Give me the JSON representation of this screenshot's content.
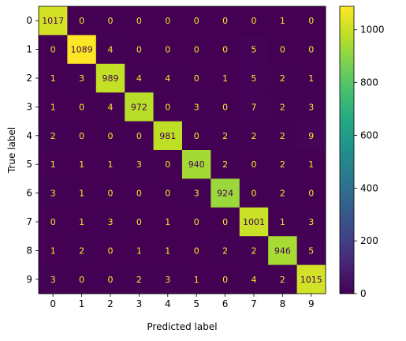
{
  "chart_data": {
    "type": "heatmap",
    "title": "",
    "xlabel": "Predicted label",
    "ylabel": "True label",
    "x_categories": [
      "0",
      "1",
      "2",
      "3",
      "4",
      "5",
      "6",
      "7",
      "8",
      "9"
    ],
    "y_categories": [
      "0",
      "1",
      "2",
      "3",
      "4",
      "5",
      "6",
      "7",
      "8",
      "9"
    ],
    "values": [
      [
        1017,
        0,
        0,
        0,
        0,
        0,
        0,
        0,
        1,
        0
      ],
      [
        0,
        1089,
        4,
        0,
        0,
        0,
        0,
        5,
        0,
        0
      ],
      [
        1,
        3,
        989,
        4,
        4,
        0,
        1,
        5,
        2,
        1
      ],
      [
        1,
        0,
        4,
        972,
        0,
        3,
        0,
        7,
        2,
        3
      ],
      [
        2,
        0,
        0,
        0,
        981,
        0,
        2,
        2,
        2,
        9
      ],
      [
        1,
        1,
        1,
        3,
        0,
        940,
        2,
        0,
        2,
        1
      ],
      [
        3,
        1,
        0,
        0,
        0,
        3,
        924,
        0,
        2,
        0
      ],
      [
        0,
        1,
        3,
        0,
        1,
        0,
        0,
        1001,
        1,
        3
      ],
      [
        1,
        2,
        0,
        1,
        1,
        0,
        2,
        2,
        946,
        5
      ],
      [
        3,
        0,
        0,
        2,
        3,
        1,
        0,
        4,
        2,
        1015
      ]
    ],
    "colormap": "viridis",
    "colorbar": {
      "range": [
        0,
        1089
      ],
      "ticks": [
        0,
        200,
        400,
        600,
        800,
        1000
      ]
    },
    "text_colors": {
      "low": "#fde725",
      "high": "#440154"
    },
    "grid": false
  }
}
